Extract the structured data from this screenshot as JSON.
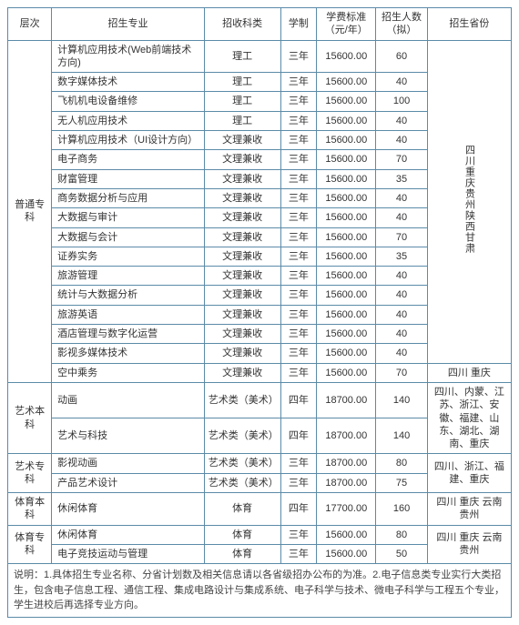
{
  "colors": {
    "border": "#5b8ba8",
    "text": "#333333",
    "background": "#ffffff"
  },
  "headers": {
    "level": "层次",
    "major": "招生专业",
    "category": "招收科类",
    "duration": "学制",
    "fee": "学费标准（元/年）",
    "count": "招生人数（拟）",
    "provinces": "招生省份"
  },
  "groups": [
    {
      "level": "普通专科",
      "provinces_vert": "四川重庆贵州陕西甘肃",
      "rows": [
        {
          "major": "计算机应用技术(Web前端技术方向)",
          "cat": "理工",
          "dur": "三年",
          "fee": "15600.00",
          "num": "60"
        },
        {
          "major": "数字媒体技术",
          "cat": "理工",
          "dur": "三年",
          "fee": "15600.00",
          "num": "40"
        },
        {
          "major": "飞机机电设备维修",
          "cat": "理工",
          "dur": "三年",
          "fee": "15600.00",
          "num": "100"
        },
        {
          "major": "无人机应用技术",
          "cat": "理工",
          "dur": "三年",
          "fee": "15600.00",
          "num": "40"
        },
        {
          "major": "计算机应用技术（UI设计方向）",
          "cat": "文理兼收",
          "dur": "三年",
          "fee": "15600.00",
          "num": "40"
        },
        {
          "major": "电子商务",
          "cat": "文理兼收",
          "dur": "三年",
          "fee": "15600.00",
          "num": "70"
        },
        {
          "major": "财富管理",
          "cat": "文理兼收",
          "dur": "三年",
          "fee": "15600.00",
          "num": "35"
        },
        {
          "major": "商务数据分析与应用",
          "cat": "文理兼收",
          "dur": "三年",
          "fee": "15600.00",
          "num": "40"
        },
        {
          "major": "大数据与审计",
          "cat": "文理兼收",
          "dur": "三年",
          "fee": "15600.00",
          "num": "40"
        },
        {
          "major": "大数据与会计",
          "cat": "文理兼收",
          "dur": "三年",
          "fee": "15600.00",
          "num": "70"
        },
        {
          "major": "证券实务",
          "cat": "文理兼收",
          "dur": "三年",
          "fee": "15600.00",
          "num": "35"
        },
        {
          "major": "旅游管理",
          "cat": "文理兼收",
          "dur": "三年",
          "fee": "15600.00",
          "num": "40"
        },
        {
          "major": "统计与大数据分析",
          "cat": "文理兼收",
          "dur": "三年",
          "fee": "15600.00",
          "num": "40"
        },
        {
          "major": "旅游英语",
          "cat": "文理兼收",
          "dur": "三年",
          "fee": "15600.00",
          "num": "40"
        },
        {
          "major": "酒店管理与数字化运营",
          "cat": "文理兼收",
          "dur": "三年",
          "fee": "15600.00",
          "num": "40"
        },
        {
          "major": "影视多媒体技术",
          "cat": "文理兼收",
          "dur": "三年",
          "fee": "15600.00",
          "num": "40"
        }
      ],
      "extra_row": {
        "major": "空中乘务",
        "cat": "文理兼收",
        "dur": "三年",
        "fee": "15600.00",
        "num": "70",
        "prov": "四川 重庆"
      }
    },
    {
      "level": "艺术本科",
      "rows": [
        {
          "major": "动画",
          "cat": "艺术类（美术）",
          "dur": "四年",
          "fee": "18700.00",
          "num": "140"
        },
        {
          "major": "艺术与科技",
          "cat": "艺术类（美术）",
          "dur": "四年",
          "fee": "18700.00",
          "num": "140"
        }
      ],
      "prov_text": "四川、内蒙、江苏、浙江、安徽、福建、山东、湖北、湖南、重庆"
    },
    {
      "level": "艺术专科",
      "rows": [
        {
          "major": "影视动画",
          "cat": "艺术类（美术）",
          "dur": "三年",
          "fee": "18700.00",
          "num": "80"
        },
        {
          "major": "产品艺术设计",
          "cat": "艺术类（美术）",
          "dur": "三年",
          "fee": "18700.00",
          "num": "75"
        }
      ],
      "prov_text": "四川、浙江、福建、重庆"
    },
    {
      "level": "体育本科",
      "rows": [
        {
          "major": "休闲体育",
          "cat": "体育",
          "dur": "四年",
          "fee": "17700.00",
          "num": "160"
        }
      ],
      "prov_text": "四川 重庆 云南 贵州"
    },
    {
      "level": "体育专科",
      "rows": [
        {
          "major": "休闲体育",
          "cat": "体育",
          "dur": "三年",
          "fee": "15600.00",
          "num": "80"
        },
        {
          "major": "电子竞技运动与管理",
          "cat": "体育",
          "dur": "三年",
          "fee": "15600.00",
          "num": "50"
        }
      ],
      "prov_text": "四川 重庆 云南 贵州"
    }
  ],
  "note": "说明：1.具体招生专业名称、分省计划数及相关信息请以各省级招办公布的为准。2.电子信息类专业实行大类招生，包含电子信息工程、通信工程、集成电路设计与集成系统、电子科学与技术、微电子科学与工程五个专业，学生进校后再选择专业方向。"
}
